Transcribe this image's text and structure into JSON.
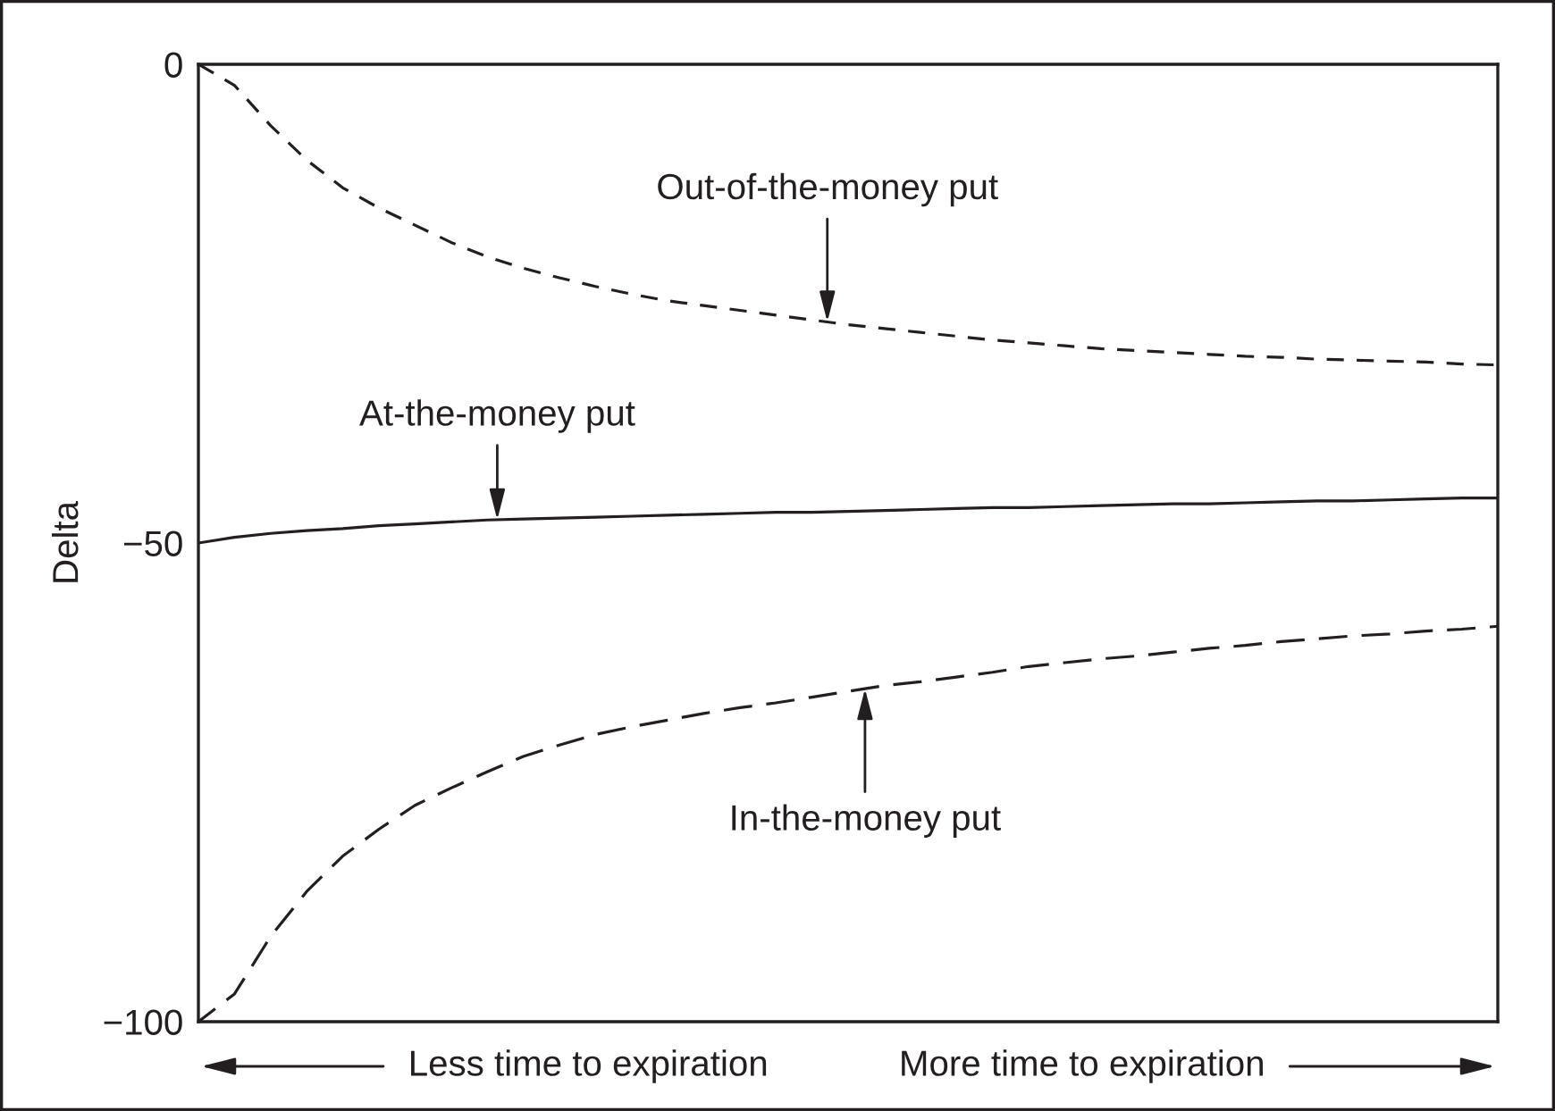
{
  "chart_data": {
    "type": "line",
    "ylabel": "Delta",
    "categories": [
      null,
      null,
      null,
      null,
      null,
      null,
      null,
      null,
      null,
      null,
      null,
      null,
      null,
      null,
      null,
      null,
      null,
      null,
      null,
      null,
      null,
      null,
      null,
      null,
      null,
      null,
      null,
      null,
      null,
      null,
      null,
      null,
      null,
      null,
      null,
      null,
      null
    ],
    "series": [
      {
        "name": "Out-of-the-money put",
        "color": "#231f20",
        "line_style": "dashed",
        "values": [
          0,
          -2.2,
          -6.4,
          -10.0,
          -12.9,
          -15.0,
          -16.8,
          -18.6,
          -20.1,
          -21.3,
          -22.3,
          -23.2,
          -24.0,
          -24.7,
          -25.2,
          -25.7,
          -26.2,
          -26.7,
          -27.2,
          -27.6,
          -28.0,
          -28.4,
          -28.8,
          -29.1,
          -29.4,
          -29.7,
          -29.9,
          -30.1,
          -30.3,
          -30.5,
          -30.6,
          -30.8,
          -30.9,
          -31.0,
          -31.1,
          -31.3,
          -31.4
        ]
      },
      {
        "name": "At-the-money put",
        "color": "#231f20",
        "line_style": "solid",
        "values": [
          -50.0,
          -49.4,
          -49.0,
          -48.7,
          -48.5,
          -48.2,
          -48.0,
          -47.8,
          -47.6,
          -47.5,
          -47.4,
          -47.3,
          -47.2,
          -47.1,
          -47.0,
          -46.9,
          -46.8,
          -46.8,
          -46.7,
          -46.6,
          -46.5,
          -46.4,
          -46.3,
          -46.3,
          -46.2,
          -46.1,
          -46.0,
          -45.9,
          -45.9,
          -45.8,
          -45.7,
          -45.6,
          -45.6,
          -45.5,
          -45.4,
          -45.3,
          -45.3
        ]
      },
      {
        "name": "In-the-money put",
        "color": "#231f20",
        "line_style": "dashed",
        "values": [
          -100,
          -97.1,
          -91.1,
          -86.4,
          -82.7,
          -79.9,
          -77.4,
          -75.6,
          -73.9,
          -72.3,
          -71.1,
          -70.0,
          -69.2,
          -68.5,
          -67.8,
          -67.2,
          -66.7,
          -66.1,
          -65.5,
          -64.9,
          -64.5,
          -64.0,
          -63.5,
          -62.9,
          -62.5,
          -62.1,
          -61.8,
          -61.4,
          -61.0,
          -60.7,
          -60.3,
          -60.0,
          -59.7,
          -59.5,
          -59.2,
          -59.0,
          -58.7
        ]
      }
    ],
    "ylim": [
      -100,
      0
    ],
    "yticks": [
      {
        "value": 0,
        "label": "0"
      },
      {
        "value": -50,
        "label": "−50"
      },
      {
        "value": -100,
        "label": "−100"
      }
    ],
    "tick_labels": "y",
    "annotations": [
      "Less time to expiration",
      "More time to expiration"
    ]
  }
}
